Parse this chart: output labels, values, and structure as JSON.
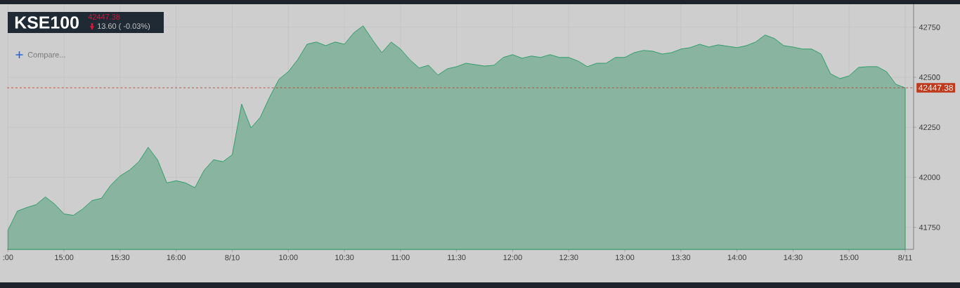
{
  "chart_data": {
    "type": "area",
    "title": "KSE100",
    "subtitle": "42447.38",
    "annotations": [
      "13.60 ( -0.03%)",
      "Compare..."
    ],
    "categories": [
      ":00",
      null,
      null,
      null,
      null,
      null,
      "15:00",
      null,
      null,
      null,
      null,
      null,
      "15:30",
      null,
      null,
      null,
      null,
      null,
      "16:00",
      null,
      null,
      null,
      null,
      null,
      "8/10",
      null,
      null,
      null,
      null,
      null,
      "10:00",
      null,
      null,
      null,
      null,
      null,
      "10:30",
      null,
      null,
      null,
      null,
      null,
      "11:00",
      null,
      null,
      null,
      null,
      null,
      "11:30",
      null,
      null,
      null,
      null,
      null,
      "12:00",
      null,
      null,
      null,
      null,
      null,
      "12:30",
      null,
      null,
      null,
      null,
      null,
      "13:00",
      null,
      null,
      null,
      null,
      null,
      "13:30",
      null,
      null,
      null,
      null,
      null,
      "14:00",
      null,
      null,
      null,
      null,
      null,
      "14:30",
      null,
      null,
      null,
      null,
      null,
      "15:00",
      null,
      null,
      null,
      null,
      null,
      "8/11"
    ],
    "series": [
      {
        "color": "#2e9e6a",
        "values": [
          41736,
          41831,
          41849,
          41863,
          41902,
          41866,
          41817,
          41810,
          41842,
          41884,
          41895,
          41961,
          42007,
          42036,
          42078,
          42150,
          42088,
          41972,
          41983,
          41972,
          41948,
          42036,
          42088,
          42078,
          42113,
          42366,
          42247,
          42300,
          42401,
          42490,
          42528,
          42588,
          42665,
          42676,
          42658,
          42676,
          42665,
          42722,
          42757,
          42687,
          42623,
          42676,
          42641,
          42588,
          42546,
          42560,
          42511,
          42542,
          42553,
          42570,
          42563,
          42556,
          42560,
          42599,
          42613,
          42595,
          42606,
          42599,
          42613,
          42599,
          42599,
          42581,
          42553,
          42570,
          42570,
          42599,
          42599,
          42623,
          42634,
          42630,
          42616,
          42623,
          42641,
          42648,
          42665,
          42651,
          42662,
          42655,
          42648,
          42658,
          42676,
          42711,
          42694,
          42658,
          42651,
          42641,
          42641,
          42616,
          42518,
          42493,
          42507,
          42549,
          42553,
          42553,
          42528,
          42465,
          42447
        ]
      }
    ],
    "ylim": [
      41640,
      42865
    ],
    "yticks": [
      41750,
      42000,
      42250,
      42500,
      42750
    ],
    "grid": true,
    "ref_lines": [
      {
        "axis": "y",
        "value": 42447.38,
        "label": "42447.38",
        "color": "#c0391b",
        "line_style": "dashed"
      }
    ]
  }
}
